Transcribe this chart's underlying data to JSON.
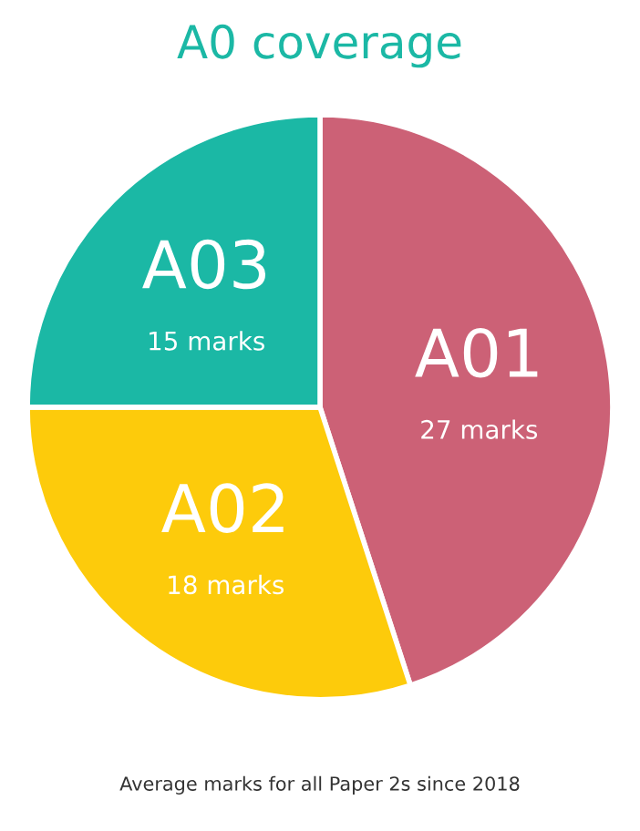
{
  "chart_data": {
    "type": "pie",
    "title": "A0 coverage",
    "categories": [
      "A01",
      "A02",
      "A03"
    ],
    "values": [
      27,
      18,
      15
    ],
    "value_labels": [
      "27 marks",
      "18 marks",
      "15 marks"
    ],
    "colors": [
      "#cc6176",
      "#fdcb0b",
      "#1bb8a5"
    ],
    "annotations": [
      "Average marks for all Paper 2s since 2018"
    ]
  }
}
